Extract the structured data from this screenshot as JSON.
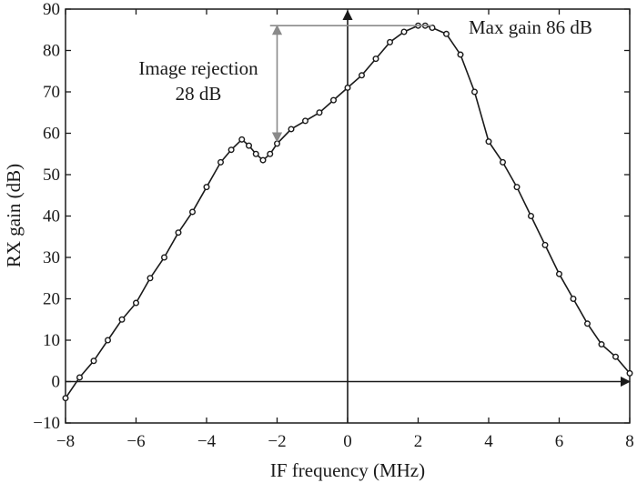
{
  "chart_data": {
    "type": "line",
    "title": "",
    "xlabel": "IF frequency (MHz)",
    "ylabel": "RX gain (dB)",
    "xlim": [
      -8,
      8
    ],
    "ylim": [
      -10,
      90
    ],
    "xticks": [
      -8,
      -6,
      -4,
      -2,
      0,
      2,
      4,
      6,
      8
    ],
    "yticks": [
      -10,
      0,
      10,
      20,
      30,
      40,
      50,
      60,
      70,
      80,
      90
    ],
    "xtick_labels": [
      "−8",
      "−6",
      "−4",
      "−2",
      "0",
      "2",
      "4",
      "6",
      "8"
    ],
    "ytick_labels": [
      "−10",
      "0",
      "10",
      "20",
      "30",
      "40",
      "50",
      "60",
      "70",
      "80",
      "90"
    ],
    "grid": false,
    "marker": "circle",
    "line_color": "#1a1a1a",
    "annotation_color": "#8a8a8a",
    "series": [
      {
        "x": [
          -8.0,
          -7.6,
          -7.2,
          -6.8,
          -6.4,
          -6.0,
          -5.6,
          -5.2,
          -4.8,
          -4.4,
          -4.0,
          -3.6,
          -3.3,
          -3.0,
          -2.8,
          -2.6,
          -2.4,
          -2.2,
          -2.0,
          -1.6,
          -1.2,
          -0.8,
          -0.4,
          0.0,
          0.4,
          0.8,
          1.2,
          1.6,
          2.0,
          2.2,
          2.4,
          2.8,
          3.2,
          3.6,
          4.0,
          4.4,
          4.8,
          5.2,
          5.6,
          6.0,
          6.4,
          6.8,
          7.2,
          7.6,
          8.0
        ],
        "y": [
          -4,
          1,
          5,
          10,
          15,
          19,
          25,
          30,
          36,
          41,
          47,
          53,
          56,
          58.5,
          57,
          55,
          53.5,
          55,
          57.5,
          61,
          63,
          65,
          68,
          71,
          74,
          78,
          82,
          84.5,
          86,
          86,
          85.5,
          84,
          79,
          70,
          58,
          53,
          47,
          40,
          33,
          26,
          20,
          14,
          9,
          6,
          2
        ]
      }
    ],
    "annotations": [
      {
        "text_lines": [
          "Max gain 86 dB"
        ],
        "y": 86
      },
      {
        "text_lines": [
          "Image rejection",
          "28 dB"
        ],
        "x": -2,
        "y_from": 58,
        "y_to": 86
      }
    ]
  }
}
